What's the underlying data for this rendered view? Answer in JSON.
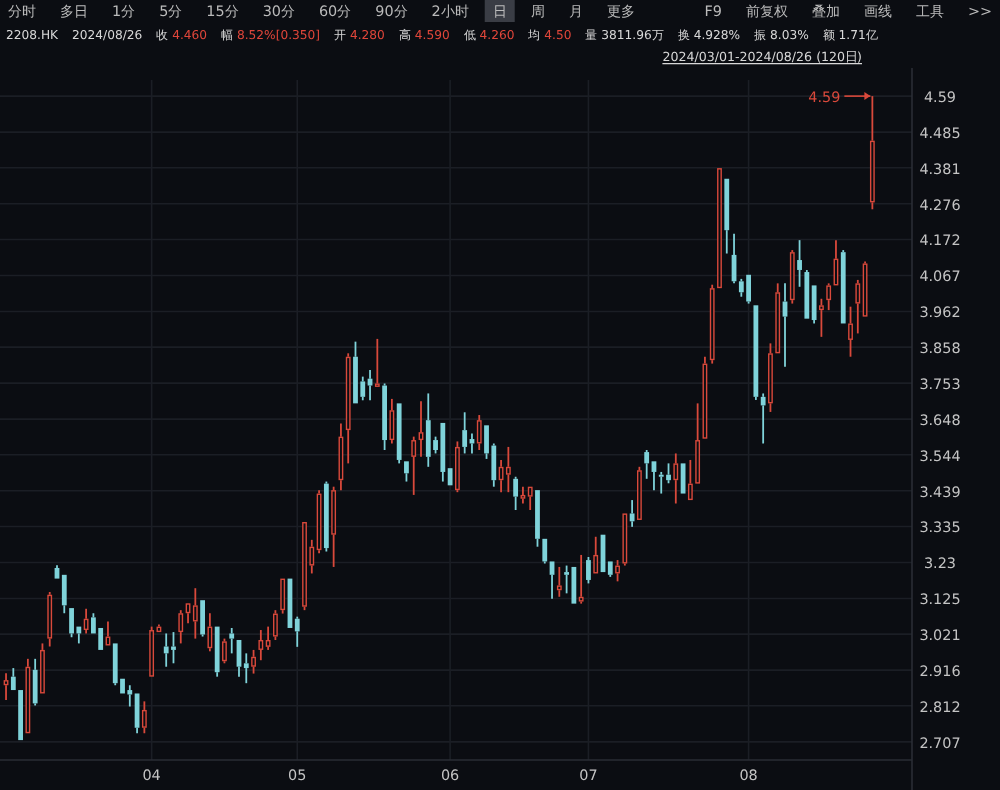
{
  "chart_data": {
    "type": "candlestick",
    "annotations": [
      "分时",
      "多日",
      "1分",
      "5分",
      "15分",
      "30分",
      "60分",
      "90分",
      "2小时",
      "日",
      "周",
      "月",
      "更多",
      "F9",
      "前复权",
      "叠加",
      "画线",
      "工具",
      ">>",
      "2208.HK",
      "2024/08/26",
      "收 4.460",
      "幅 8.52%[0.350]",
      "开 4.280",
      "高 4.590",
      "低 4.260",
      "均 4.50",
      "量 3811.96万",
      "换 4.928%",
      "振 8.03%",
      "额 1.71亿",
      "2024/03/01-2024/08/26 (120日)",
      "4.59"
    ],
    "categories": [
      null,
      null,
      null,
      null,
      null,
      null,
      null,
      null,
      null,
      null,
      null,
      null,
      null,
      null,
      null,
      null,
      null,
      null,
      null,
      null,
      "04",
      null,
      null,
      null,
      null,
      null,
      null,
      null,
      null,
      null,
      null,
      null,
      null,
      null,
      null,
      null,
      null,
      null,
      null,
      null,
      "05",
      null,
      null,
      null,
      null,
      null,
      null,
      null,
      null,
      null,
      null,
      null,
      null,
      null,
      null,
      null,
      null,
      null,
      null,
      null,
      null,
      "06",
      null,
      null,
      null,
      null,
      null,
      null,
      null,
      null,
      null,
      null,
      null,
      null,
      null,
      null,
      null,
      null,
      null,
      null,
      "07",
      null,
      null,
      null,
      null,
      null,
      null,
      null,
      null,
      null,
      null,
      null,
      null,
      null,
      null,
      null,
      null,
      null,
      null,
      null,
      null,
      null,
      "08",
      null,
      null,
      null,
      null,
      null,
      null,
      null,
      null,
      null,
      null,
      null,
      null,
      null,
      null,
      null,
      null,
      null
    ],
    "ohlc": [
      [
        2.872,
        2.907,
        2.829,
        2.887
      ],
      [
        2.897,
        2.922,
        2.854,
        2.858
      ],
      [
        2.858,
        2.86,
        2.708,
        2.712
      ],
      [
        2.732,
        2.949,
        2.728,
        2.926
      ],
      [
        2.917,
        2.949,
        2.813,
        2.819
      ],
      [
        2.848,
        2.994,
        2.844,
        2.975
      ],
      [
        3.008,
        3.144,
        2.985,
        3.136
      ],
      [
        3.214,
        3.222,
        3.179,
        3.183
      ],
      [
        3.194,
        3.198,
        3.082,
        3.105
      ],
      [
        3.097,
        3.101,
        3.012,
        3.023
      ],
      [
        3.043,
        3.047,
        2.994,
        3.023
      ],
      [
        3.033,
        3.095,
        3.023,
        3.066
      ],
      [
        3.07,
        3.082,
        3.02,
        3.023
      ],
      [
        3.039,
        3.043,
        2.971,
        2.975
      ],
      [
        2.988,
        3.058,
        2.985,
        3.014
      ],
      [
        2.994,
        2.998,
        2.872,
        2.878
      ],
      [
        2.891,
        2.895,
        2.845,
        2.848
      ],
      [
        2.858,
        2.872,
        2.81,
        2.845
      ],
      [
        2.848,
        2.852,
        2.732,
        2.748
      ],
      [
        2.748,
        2.825,
        2.732,
        2.8
      ],
      [
        2.897,
        3.043,
        2.893,
        3.033
      ],
      [
        3.027,
        3.049,
        3.023,
        3.043
      ],
      [
        2.985,
        3.023,
        2.926,
        2.965
      ],
      [
        2.985,
        3.027,
        2.936,
        2.975
      ],
      [
        3.027,
        3.091,
        2.994,
        3.082
      ],
      [
        3.082,
        3.116,
        3.053,
        3.111
      ],
      [
        3.058,
        3.155,
        3.008,
        3.105
      ],
      [
        3.12,
        3.124,
        3.014,
        3.02
      ],
      [
        2.98,
        3.082,
        2.971,
        3.043
      ],
      [
        3.043,
        3.047,
        2.897,
        2.91
      ],
      [
        2.942,
        3.008,
        2.936,
        3.0
      ],
      [
        3.023,
        3.039,
        2.965,
        3.008
      ],
      [
        3.004,
        3.008,
        2.897,
        2.926
      ],
      [
        2.936,
        2.965,
        2.878,
        2.922
      ],
      [
        2.926,
        2.975,
        2.906,
        2.955
      ],
      [
        2.975,
        3.033,
        2.945,
        3.004
      ],
      [
        2.984,
        3.043,
        2.975,
        3.004
      ],
      [
        3.014,
        3.091,
        3.004,
        3.081
      ],
      [
        3.091,
        3.188,
        3.081,
        3.183
      ],
      [
        3.183,
        3.188,
        3.038,
        3.039
      ],
      [
        3.066,
        3.072,
        2.984,
        3.029
      ],
      [
        3.101,
        3.348,
        3.091,
        3.348
      ],
      [
        3.221,
        3.296,
        3.198,
        3.276
      ],
      [
        3.266,
        3.441,
        3.257,
        3.431
      ],
      [
        3.46,
        3.466,
        3.262,
        3.272
      ],
      [
        3.311,
        3.451,
        3.217,
        3.441
      ],
      [
        3.47,
        3.635,
        3.441,
        3.597
      ],
      [
        3.616,
        3.84,
        3.519,
        3.83
      ],
      [
        3.83,
        3.874,
        3.694,
        3.694
      ],
      [
        3.758,
        3.772,
        3.703,
        3.713
      ],
      [
        3.766,
        3.791,
        3.703,
        3.746
      ],
      [
        3.742,
        3.882,
        3.742,
        3.752
      ],
      [
        3.746,
        3.752,
        3.558,
        3.587
      ],
      [
        3.587,
        3.707,
        3.577,
        3.674
      ],
      [
        3.694,
        3.698,
        3.519,
        3.529
      ],
      [
        3.525,
        3.529,
        3.466,
        3.49
      ],
      [
        3.538,
        3.597,
        3.427,
        3.587
      ],
      [
        3.587,
        3.7,
        3.538,
        3.61
      ],
      [
        3.645,
        3.723,
        3.509,
        3.538
      ],
      [
        3.587,
        3.597,
        3.548,
        3.558
      ],
      [
        3.637,
        3.641,
        3.466,
        3.494
      ],
      [
        3.505,
        3.509,
        3.451,
        3.455
      ],
      [
        3.441,
        3.583,
        3.435,
        3.567
      ],
      [
        3.616,
        3.668,
        3.548,
        3.567
      ],
      [
        3.59,
        3.606,
        3.548,
        3.577
      ],
      [
        3.577,
        3.66,
        3.558,
        3.645
      ],
      [
        3.63,
        3.635,
        3.532,
        3.548
      ],
      [
        3.571,
        3.577,
        3.451,
        3.47
      ],
      [
        3.47,
        3.529,
        3.435,
        3.509
      ],
      [
        3.486,
        3.567,
        3.435,
        3.509
      ],
      [
        3.474,
        3.48,
        3.383,
        3.422
      ],
      [
        3.416,
        3.451,
        3.402,
        3.427
      ],
      [
        3.422,
        3.455,
        3.383,
        3.451
      ],
      [
        3.441,
        3.445,
        3.276,
        3.299
      ],
      [
        3.299,
        3.303,
        3.227,
        3.233
      ],
      [
        3.233,
        3.237,
        3.124,
        3.194
      ],
      [
        3.149,
        3.217,
        3.13,
        3.163
      ],
      [
        3.202,
        3.221,
        3.14,
        3.194
      ],
      [
        3.217,
        3.221,
        3.11,
        3.11
      ],
      [
        3.116,
        3.252,
        3.11,
        3.13
      ],
      [
        3.237,
        3.246,
        3.169,
        3.179
      ],
      [
        3.198,
        3.305,
        3.198,
        3.252
      ],
      [
        3.311,
        3.315,
        3.198,
        3.202
      ],
      [
        3.233,
        3.237,
        3.188,
        3.194
      ],
      [
        3.198,
        3.237,
        3.175,
        3.221
      ],
      [
        3.227,
        3.377,
        3.221,
        3.373
      ],
      [
        3.373,
        3.412,
        3.334,
        3.35
      ],
      [
        3.354,
        3.509,
        3.35,
        3.499
      ],
      [
        3.552,
        3.558,
        3.474,
        3.519
      ],
      [
        3.525,
        3.529,
        3.441,
        3.494
      ],
      [
        3.486,
        3.494,
        3.431,
        3.48
      ],
      [
        3.486,
        3.519,
        3.461,
        3.47
      ],
      [
        3.47,
        3.548,
        3.402,
        3.519
      ],
      [
        3.519,
        3.523,
        3.427,
        3.431
      ],
      [
        3.412,
        3.529,
        3.408,
        3.46
      ],
      [
        3.46,
        3.694,
        3.455,
        3.587
      ],
      [
        3.591,
        3.83,
        3.587,
        3.81
      ],
      [
        3.82,
        4.04,
        3.81,
        4.03
      ],
      [
        4.03,
        4.384,
        4.03,
        4.38
      ],
      [
        4.349,
        4.349,
        4.131,
        4.199
      ],
      [
        4.127,
        4.189,
        4.044,
        4.05
      ],
      [
        4.05,
        4.057,
        4.005,
        4.018
      ],
      [
        4.069,
        4.073,
        3.985,
        3.991
      ],
      [
        3.98,
        3.984,
        3.704,
        3.713
      ],
      [
        3.713,
        3.723,
        3.577,
        3.688
      ],
      [
        3.694,
        3.869,
        3.669,
        3.84
      ],
      [
        3.84,
        4.044,
        3.836,
        4.018
      ],
      [
        3.991,
        4.044,
        3.801,
        3.947
      ],
      [
        3.995,
        4.141,
        3.985,
        4.135
      ],
      [
        4.112,
        4.17,
        4.034,
        4.083
      ],
      [
        4.077,
        4.083,
        3.937,
        3.941
      ],
      [
        4.038,
        4.042,
        3.927,
        3.937
      ],
      [
        3.966,
        3.999,
        3.888,
        3.98
      ],
      [
        3.995,
        4.044,
        3.966,
        4.038
      ],
      [
        4.038,
        4.17,
        4.034,
        4.116
      ],
      [
        4.135,
        4.141,
        3.927,
        3.927
      ],
      [
        3.879,
        3.976,
        3.83,
        3.927
      ],
      [
        3.985,
        4.054,
        3.898,
        4.044
      ],
      [
        3.947,
        4.108,
        3.947,
        4.102
      ],
      [
        4.28,
        4.59,
        4.26,
        4.46
      ]
    ],
    "colors": [
      "#d9493b",
      "#7fd3da",
      "#7fd3da",
      "#d9493b",
      "#7fd3da",
      "#d9493b",
      "#d9493b",
      "#7fd3da",
      "#7fd3da",
      "#7fd3da",
      "#7fd3da",
      "#d9493b",
      "#7fd3da",
      "#7fd3da",
      "#d9493b",
      "#7fd3da",
      "#7fd3da",
      "#7fd3da",
      "#7fd3da",
      "#d9493b",
      "#d9493b",
      "#d9493b",
      "#7fd3da",
      "#7fd3da",
      "#d9493b",
      "#d9493b",
      "#d9493b",
      "#7fd3da",
      "#d9493b",
      "#7fd3da",
      "#d9493b",
      "#7fd3da",
      "#7fd3da",
      "#7fd3da",
      "#d9493b",
      "#d9493b",
      "#d9493b",
      "#d9493b",
      "#d9493b",
      "#7fd3da",
      "#7fd3da",
      "#d9493b",
      "#d9493b",
      "#d9493b",
      "#7fd3da",
      "#d9493b",
      "#d9493b",
      "#d9493b",
      "#7fd3da",
      "#7fd3da",
      "#7fd3da",
      "#d9493b",
      "#7fd3da",
      "#d9493b",
      "#7fd3da",
      "#7fd3da",
      "#d9493b",
      "#d9493b",
      "#7fd3da",
      "#7fd3da",
      "#7fd3da",
      "#7fd3da",
      "#d9493b",
      "#7fd3da",
      "#7fd3da",
      "#d9493b",
      "#7fd3da",
      "#7fd3da",
      "#d9493b",
      "#d9493b",
      "#7fd3da",
      "#d9493b",
      "#d9493b",
      "#7fd3da",
      "#7fd3da",
      "#7fd3da",
      "#d9493b",
      "#7fd3da",
      "#7fd3da",
      "#d9493b",
      "#7fd3da",
      "#d9493b",
      "#7fd3da",
      "#7fd3da",
      "#d9493b",
      "#d9493b",
      "#7fd3da",
      "#d9493b",
      "#7fd3da",
      "#7fd3da",
      "#7fd3da",
      "#7fd3da",
      "#d9493b",
      "#7fd3da",
      "#d9493b",
      "#d9493b",
      "#d9493b",
      "#d9493b",
      "#d9493b",
      "#7fd3da",
      "#7fd3da",
      "#7fd3da",
      "#7fd3da",
      "#7fd3da",
      "#7fd3da",
      "#d9493b",
      "#d9493b",
      "#7fd3da",
      "#d9493b",
      "#7fd3da",
      "#7fd3da",
      "#7fd3da",
      "#d9493b",
      "#d9493b",
      "#d9493b",
      "#7fd3da",
      "#d9493b",
      "#d9493b",
      "#d9493b",
      "#d9493b"
    ],
    "ylim": [
      2.654,
      4.637
    ],
    "yticks": [
      4.59,
      4.485,
      4.381,
      4.276,
      4.172,
      4.067,
      3.962,
      3.858,
      3.753,
      3.648,
      3.544,
      3.439,
      3.335,
      3.23,
      3.125,
      3.021,
      2.916,
      2.812,
      2.707
    ],
    "grid": true
  }
}
